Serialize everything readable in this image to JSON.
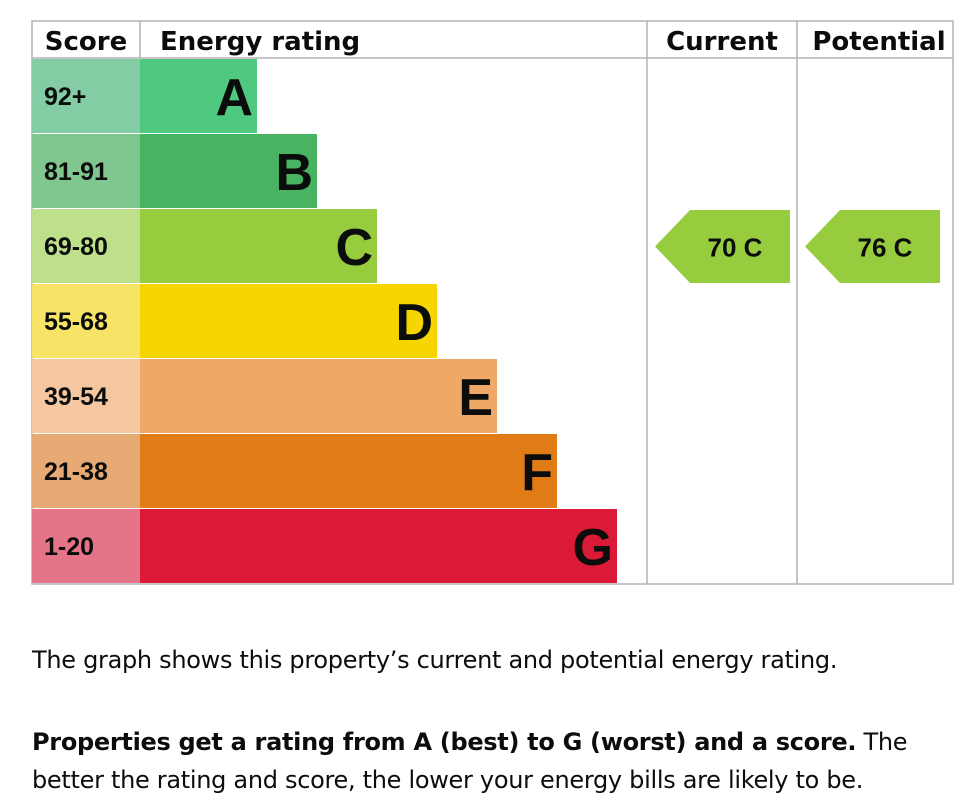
{
  "chart_data": {
    "type": "bar",
    "headers": {
      "score": "Score",
      "rating": "Energy rating",
      "current": "Current",
      "potential": "Potential"
    },
    "bands": [
      {
        "letter": "A",
        "range": "92+",
        "color": "#4fc97f",
        "score_color": "#84cca4"
      },
      {
        "letter": "B",
        "range": "81-91",
        "color": "#48b360",
        "score_color": "#80c68f"
      },
      {
        "letter": "C",
        "range": "69-80",
        "color": "#97cc3f",
        "score_color": "#bfe08b"
      },
      {
        "letter": "D",
        "range": "55-68",
        "color": "#f6d500",
        "score_color": "#f7e365"
      },
      {
        "letter": "E",
        "range": "39-54",
        "color": "#f0a866",
        "score_color": "#f5c7a0"
      },
      {
        "letter": "F",
        "range": "21-38",
        "color": "#e07b16",
        "score_color": "#e8aa75"
      },
      {
        "letter": "G",
        "range": "1-20",
        "color": "#db1a37",
        "score_color": "#e67489"
      }
    ],
    "current": {
      "score": 70,
      "band": "C",
      "label": "70  C",
      "color": "#97cc3f"
    },
    "potential": {
      "score": 76,
      "band": "C",
      "label": "76  C",
      "color": "#97cc3f"
    }
  },
  "description": {
    "line1": "The graph shows this property’s current and potential energy rating.",
    "bold": "Properties get a rating from A (best) to G (worst) and a score.",
    "rest": " The better the rating and score, the lower your energy bills are likely to be."
  }
}
